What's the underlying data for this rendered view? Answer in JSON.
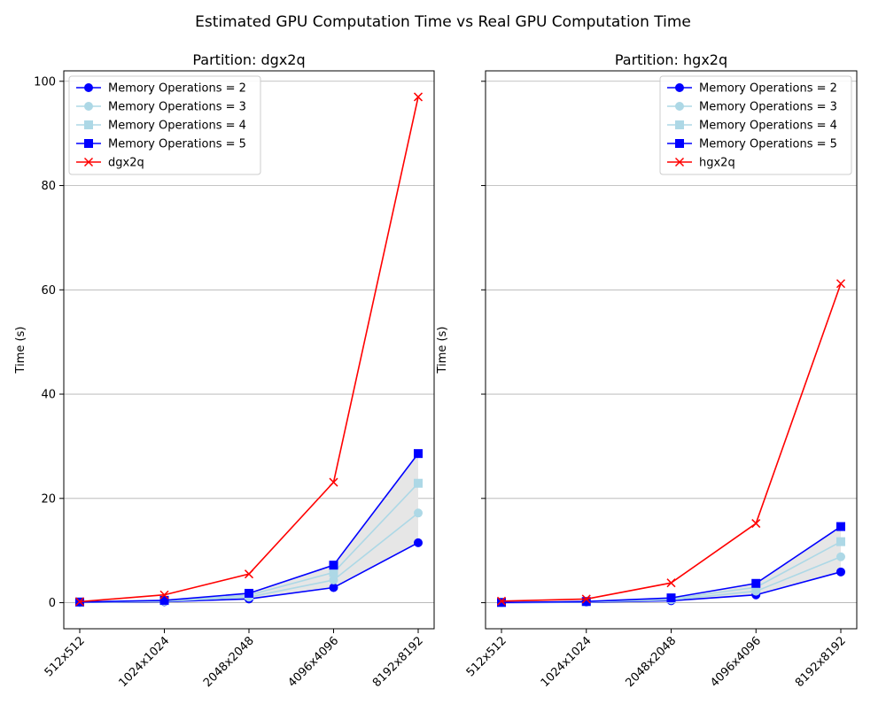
{
  "chart_data": {
    "suptitle": "Estimated GPU Computation Time vs Real GPU Computation Time",
    "categories": [
      "512x512",
      "1024x1024",
      "2048x2048",
      "4096x4096",
      "8192x8192"
    ],
    "ylabel": "Time (s)",
    "ylim": [
      -5,
      102
    ],
    "yticks": [
      0,
      20,
      40,
      60,
      80,
      100
    ],
    "grid": "horizontal",
    "subplots": [
      {
        "type": "line",
        "title": "Partition: dgx2q",
        "legend_position": "top-left",
        "series": [
          {
            "name": "Memory Operations = 2",
            "color": "#0000ff",
            "marker": "circle",
            "values": [
              0.05,
              0.18,
              0.72,
              2.9,
              11.5
            ]
          },
          {
            "name": "Memory Operations = 3",
            "color": "#add8e6",
            "marker": "circle",
            "values": [
              0.08,
              0.27,
              1.08,
              4.35,
              17.2
            ]
          },
          {
            "name": "Memory Operations = 4",
            "color": "#add8e6",
            "marker": "square",
            "values": [
              0.1,
              0.36,
              1.44,
              5.8,
              22.9
            ]
          },
          {
            "name": "Memory Operations = 5",
            "color": "#0000ff",
            "marker": "square",
            "values": [
              0.13,
              0.45,
              1.8,
              7.2,
              28.6
            ]
          },
          {
            "name": "dgx2q",
            "color": "#ff0000",
            "marker": "x",
            "values": [
              0.2,
              1.5,
              5.5,
              23.1,
              97.0
            ]
          }
        ]
      },
      {
        "type": "line",
        "title": "Partition: hgx2q",
        "legend_position": "top-right",
        "series": [
          {
            "name": "Memory Operations = 2",
            "color": "#0000ff",
            "marker": "circle",
            "values": [
              0.02,
              0.09,
              0.37,
              1.5,
              5.9
            ]
          },
          {
            "name": "Memory Operations = 3",
            "color": "#add8e6",
            "marker": "circle",
            "values": [
              0.03,
              0.14,
              0.56,
              2.2,
              8.8
            ]
          },
          {
            "name": "Memory Operations = 4",
            "color": "#add8e6",
            "marker": "square",
            "values": [
              0.04,
              0.18,
              0.74,
              2.95,
              11.7
            ]
          },
          {
            "name": "Memory Operations = 5",
            "color": "#0000ff",
            "marker": "square",
            "values": [
              0.05,
              0.23,
              0.92,
              3.7,
              14.6
            ]
          },
          {
            "name": "hgx2q",
            "color": "#ff0000",
            "marker": "x",
            "values": [
              0.3,
              0.7,
              3.8,
              15.2,
              61.2
            ]
          }
        ]
      }
    ]
  }
}
